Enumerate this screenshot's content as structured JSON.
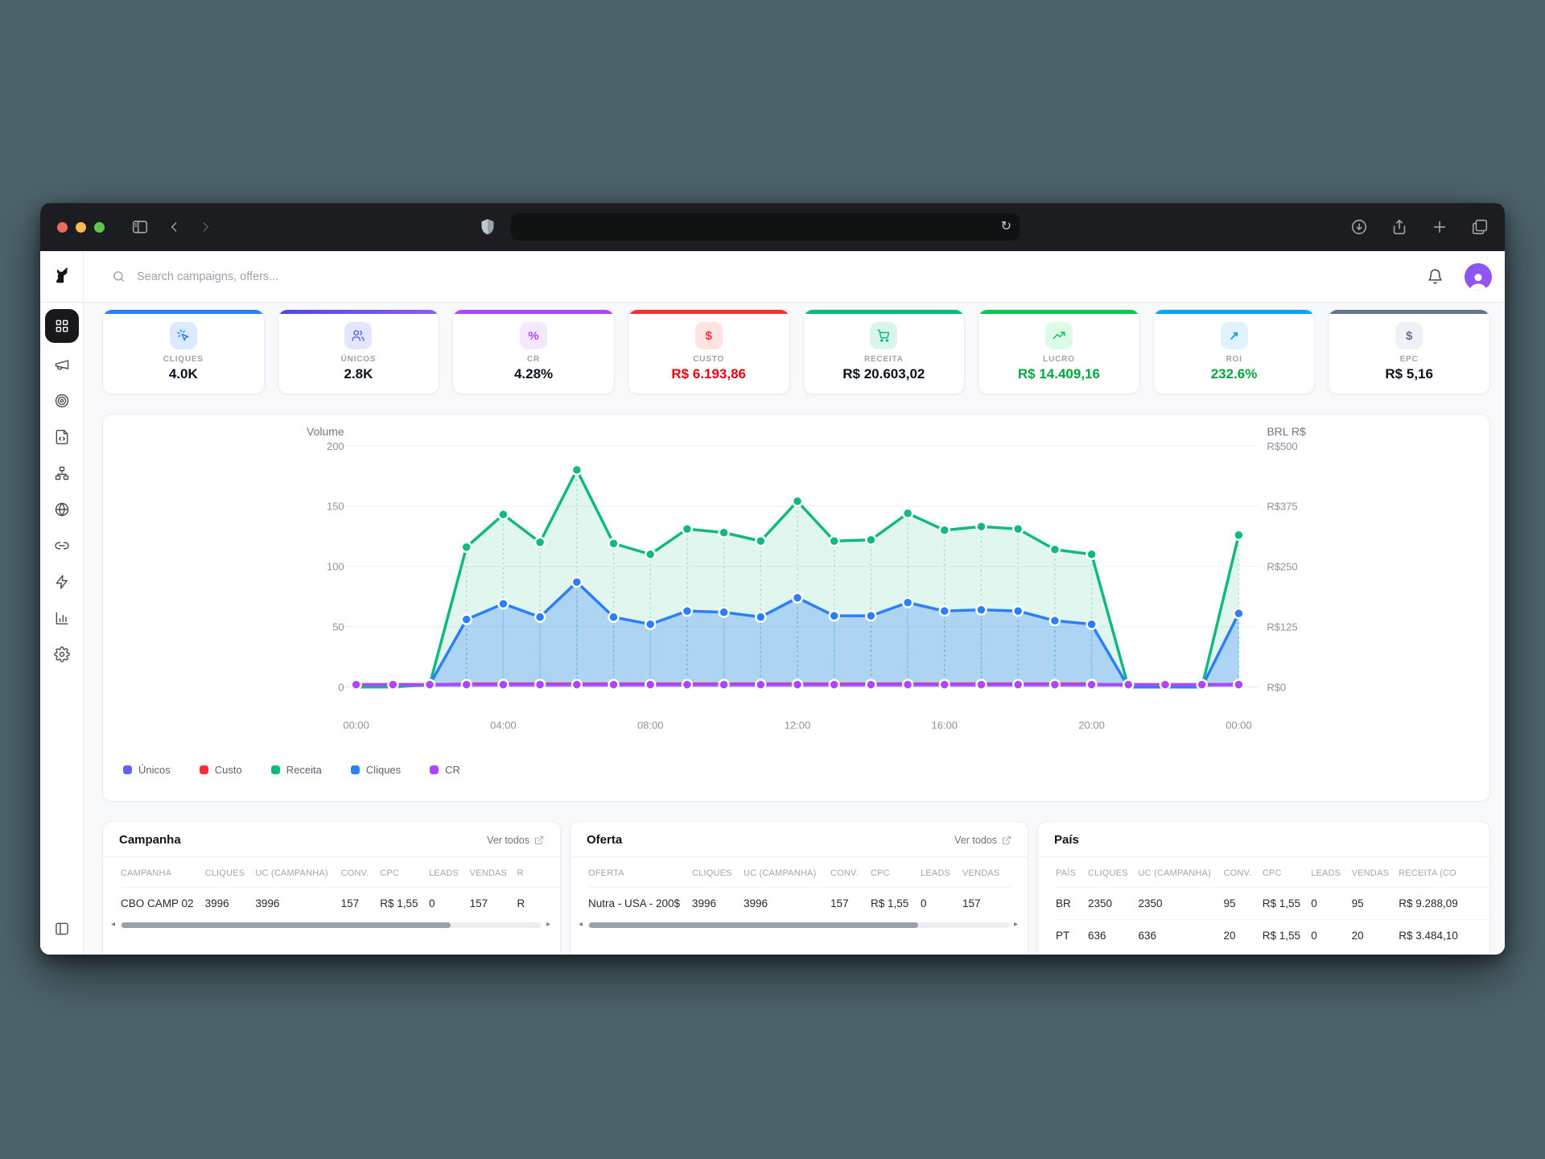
{
  "browser": {
    "url_value": ""
  },
  "app": {
    "header": {
      "search_placeholder": "Search campaigns, offers..."
    },
    "sidebar": {
      "items": [
        "dashboard",
        "megaphone",
        "target",
        "file-code",
        "network",
        "globe",
        "link",
        "zap",
        "bar-chart",
        "settings",
        "panel-left"
      ]
    },
    "stats": {
      "cards": [
        {
          "label": "CLIQUES",
          "value": "4.0K",
          "accent": "#2b7fff",
          "chip_bg": "#dbeafe",
          "chip_color": "#2b7fff",
          "value_color": "#0b1220",
          "icon": "cursor-click-icon"
        },
        {
          "label": "ÚNICOS",
          "value": "2.8K",
          "accent": "linear-gradient(90deg,#4f46e5,#8b5cf6)",
          "chip_bg": "#e0e7ff",
          "chip_color": "#615fff",
          "value_color": "#0b1220",
          "icon": "users-icon"
        },
        {
          "label": "CR",
          "value": "4.28%",
          "accent": "#ad46ff",
          "chip_bg": "#f3e8ff",
          "chip_color": "#ad46ff",
          "value_color": "#0b1220",
          "icon": "percent-icon"
        },
        {
          "label": "CUSTO",
          "value": "R$ 6.193,86",
          "accent": "#fb2c36",
          "chip_bg": "#ffe2e2",
          "chip_color": "#fb2c36",
          "value_color": "#e7000b",
          "icon": "dollar-icon"
        },
        {
          "label": "RECEITA",
          "value": "R$ 20.603,02",
          "accent": "#00bc7d",
          "chip_bg": "#d9f6ea",
          "chip_color": "#00bc7d",
          "value_color": "#0b1220",
          "icon": "cart-icon"
        },
        {
          "label": "LUCRO",
          "value": "R$ 14.409,16",
          "accent": "#00c950",
          "chip_bg": "#dcfce7",
          "chip_color": "#00c950",
          "value_color": "#00a63e",
          "icon": "trending-up-icon"
        },
        {
          "label": "ROI",
          "value": "232.6%",
          "accent": "#00a6f4",
          "chip_bg": "#dff2fe",
          "chip_color": "#00a6f4",
          "value_color": "#00a63e",
          "icon": "arrow-up-right-icon"
        },
        {
          "label": "EPC",
          "value": "R$ 5,16",
          "accent": "#62748e",
          "chip_bg": "#eef2f6",
          "chip_color": "#62748e",
          "value_color": "#0b1220",
          "icon": "dollar-icon"
        }
      ]
    },
    "tables": [
      {
        "title": "Campanha",
        "link_label": "Ver todos",
        "headers": [
          "CAMPANHA",
          "CLIQUES",
          "UC (CAMPANHA)",
          "CONV.",
          "CPC",
          "LEADS",
          "VENDAS",
          "R"
        ],
        "rows": [
          [
            "CBO CAMP 02",
            "3996",
            "3996",
            "157",
            "R$ 1,55",
            "0",
            "157",
            "R"
          ]
        ],
        "scrollbar": true
      },
      {
        "title": "Oferta",
        "link_label": "Ver todos",
        "headers": [
          "OFERTA",
          "CLIQUES",
          "UC (CAMPANHA)",
          "CONV.",
          "CPC",
          "LEADS",
          "VENDAS"
        ],
        "rows": [
          [
            "Nutra - USA - 200$",
            "3996",
            "3996",
            "157",
            "R$ 1,55",
            "0",
            "157"
          ]
        ],
        "scrollbar": true
      },
      {
        "title": "País",
        "link_label": null,
        "headers": [
          "PAÍS",
          "CLIQUES",
          "UC (CAMPANHA)",
          "CONV.",
          "CPC",
          "LEADS",
          "VENDAS",
          "RECEITA (CO"
        ],
        "rows": [
          [
            "BR",
            "2350",
            "2350",
            "95",
            "R$ 1,55",
            "0",
            "95",
            "R$ 9.288,09"
          ],
          [
            "PT",
            "636",
            "636",
            "20",
            "R$ 1,55",
            "0",
            "20",
            "R$ 3.484,10"
          ]
        ],
        "scrollbar": false
      }
    ]
  },
  "chart_data": {
    "type": "area",
    "x_tick_labels": [
      "00:00",
      "04:00",
      "08:00",
      "12:00",
      "16:00",
      "20:00",
      "00:00"
    ],
    "x_tick_positions": [
      0,
      4,
      8,
      12,
      16,
      20,
      24
    ],
    "left_axis": {
      "title": "Volume",
      "ticks": [
        0,
        50,
        100,
        150,
        200
      ],
      "range": [
        0,
        200
      ]
    },
    "right_axis": {
      "title": "BRL R$",
      "ticks": [
        "R$0",
        "R$125",
        "R$250",
        "R$375",
        "R$500"
      ],
      "range": [
        0,
        500
      ]
    },
    "grid": "horizontal",
    "legend_position": "bottom-left",
    "series": [
      {
        "name": "Únicos",
        "color": "#615fff",
        "values": [
          2,
          2,
          2,
          56,
          69,
          58,
          87,
          58,
          52,
          63,
          62,
          58,
          74,
          59,
          59,
          70,
          63,
          64,
          63,
          55,
          52,
          0,
          0,
          0,
          61
        ]
      },
      {
        "name": "Custo",
        "color": "#fb2c36",
        "values": [
          2,
          2,
          2,
          3,
          3,
          3,
          3,
          3,
          3,
          3,
          3,
          3,
          3,
          3,
          3,
          3,
          3,
          3,
          3,
          3,
          3,
          1,
          1,
          1,
          3
        ]
      },
      {
        "name": "Receita",
        "color": "#10b981",
        "values": [
          0,
          0,
          2,
          116,
          143,
          120,
          180,
          119,
          110,
          131,
          128,
          121,
          154,
          121,
          122,
          144,
          130,
          133,
          131,
          114,
          110,
          0,
          0,
          0,
          126
        ]
      },
      {
        "name": "Cliques",
        "color": "#2b7fff",
        "values": [
          2,
          2,
          2,
          56,
          69,
          58,
          87,
          58,
          52,
          63,
          62,
          58,
          74,
          59,
          59,
          70,
          63,
          64,
          63,
          55,
          52,
          0,
          0,
          0,
          61
        ]
      },
      {
        "name": "CR",
        "color": "#ad46ff",
        "values": [
          2,
          2,
          2,
          2,
          2,
          2,
          2,
          2,
          2,
          2,
          2,
          2,
          2,
          2,
          2,
          2,
          2,
          2,
          2,
          2,
          2,
          2,
          2,
          2,
          2
        ]
      }
    ]
  }
}
